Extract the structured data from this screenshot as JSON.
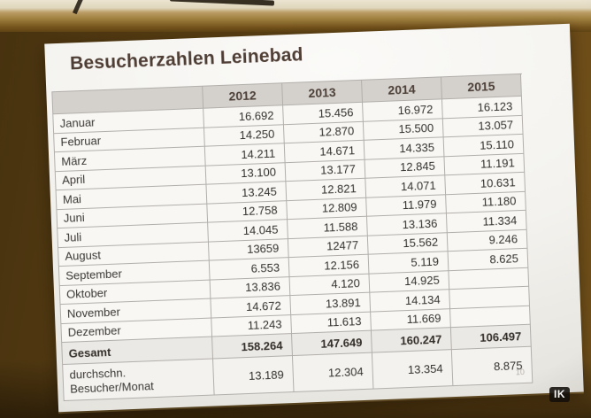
{
  "photo": {
    "watermark": "IK"
  },
  "slide": {
    "title": "Besucherzahlen Leinebad",
    "page_number": "10",
    "table": {
      "corner_label": "",
      "year_columns": [
        "2012",
        "2013",
        "2014",
        "2015"
      ],
      "rows": [
        {
          "label": "Januar",
          "style": "month",
          "values": [
            "16.692",
            "15.456",
            "16.972",
            "16.123"
          ]
        },
        {
          "label": "Februar",
          "style": "month",
          "values": [
            "14.250",
            "12.870",
            "15.500",
            "13.057"
          ]
        },
        {
          "label": "März",
          "style": "month",
          "values": [
            "14.211",
            "14.671",
            "14.335",
            "15.110"
          ]
        },
        {
          "label": "April",
          "style": "month",
          "values": [
            "13.100",
            "13.177",
            "12.845",
            "11.191"
          ]
        },
        {
          "label": "Mai",
          "style": "month",
          "values": [
            "13.245",
            "12.821",
            "14.071",
            "10.631"
          ]
        },
        {
          "label": "Juni",
          "style": "month",
          "values": [
            "12.758",
            "12.809",
            "11.979",
            "11.180"
          ]
        },
        {
          "label": "Juli",
          "style": "month",
          "values": [
            "14.045",
            "11.588",
            "13.136",
            "11.334"
          ]
        },
        {
          "label": "August",
          "style": "month",
          "values": [
            "13659",
            "12477",
            "15.562",
            "9.246"
          ]
        },
        {
          "label": "September",
          "style": "month",
          "values": [
            "6.553",
            "12.156",
            "5.119",
            "8.625"
          ]
        },
        {
          "label": "Oktober",
          "style": "month",
          "values": [
            "13.836",
            "4.120",
            "14.925",
            ""
          ]
        },
        {
          "label": "November",
          "style": "month",
          "values": [
            "14.672",
            "13.891",
            "14.134",
            ""
          ]
        },
        {
          "label": "Dezember",
          "style": "month",
          "values": [
            "11.243",
            "11.613",
            "11.669",
            ""
          ]
        },
        {
          "label": "Gesamt",
          "style": "total",
          "values": [
            "158.264",
            "147.649",
            "160.247",
            "106.497"
          ]
        },
        {
          "label": "durchschn.\nBesucher/Monat",
          "style": "avg",
          "values": [
            "13.189",
            "12.304",
            "13.354",
            "8.875"
          ]
        }
      ]
    }
  },
  "palette": {
    "wall_brown": "#5a3f13",
    "ceiling_tan": "#bb9d66",
    "slide_white": "#f3f2ee",
    "header_gray": "#d4d1cc",
    "total_row_bg": "#ebe9e5",
    "title_text": "#4f3e35",
    "number_text": "#34322f",
    "grid_line": "#b2afab"
  }
}
